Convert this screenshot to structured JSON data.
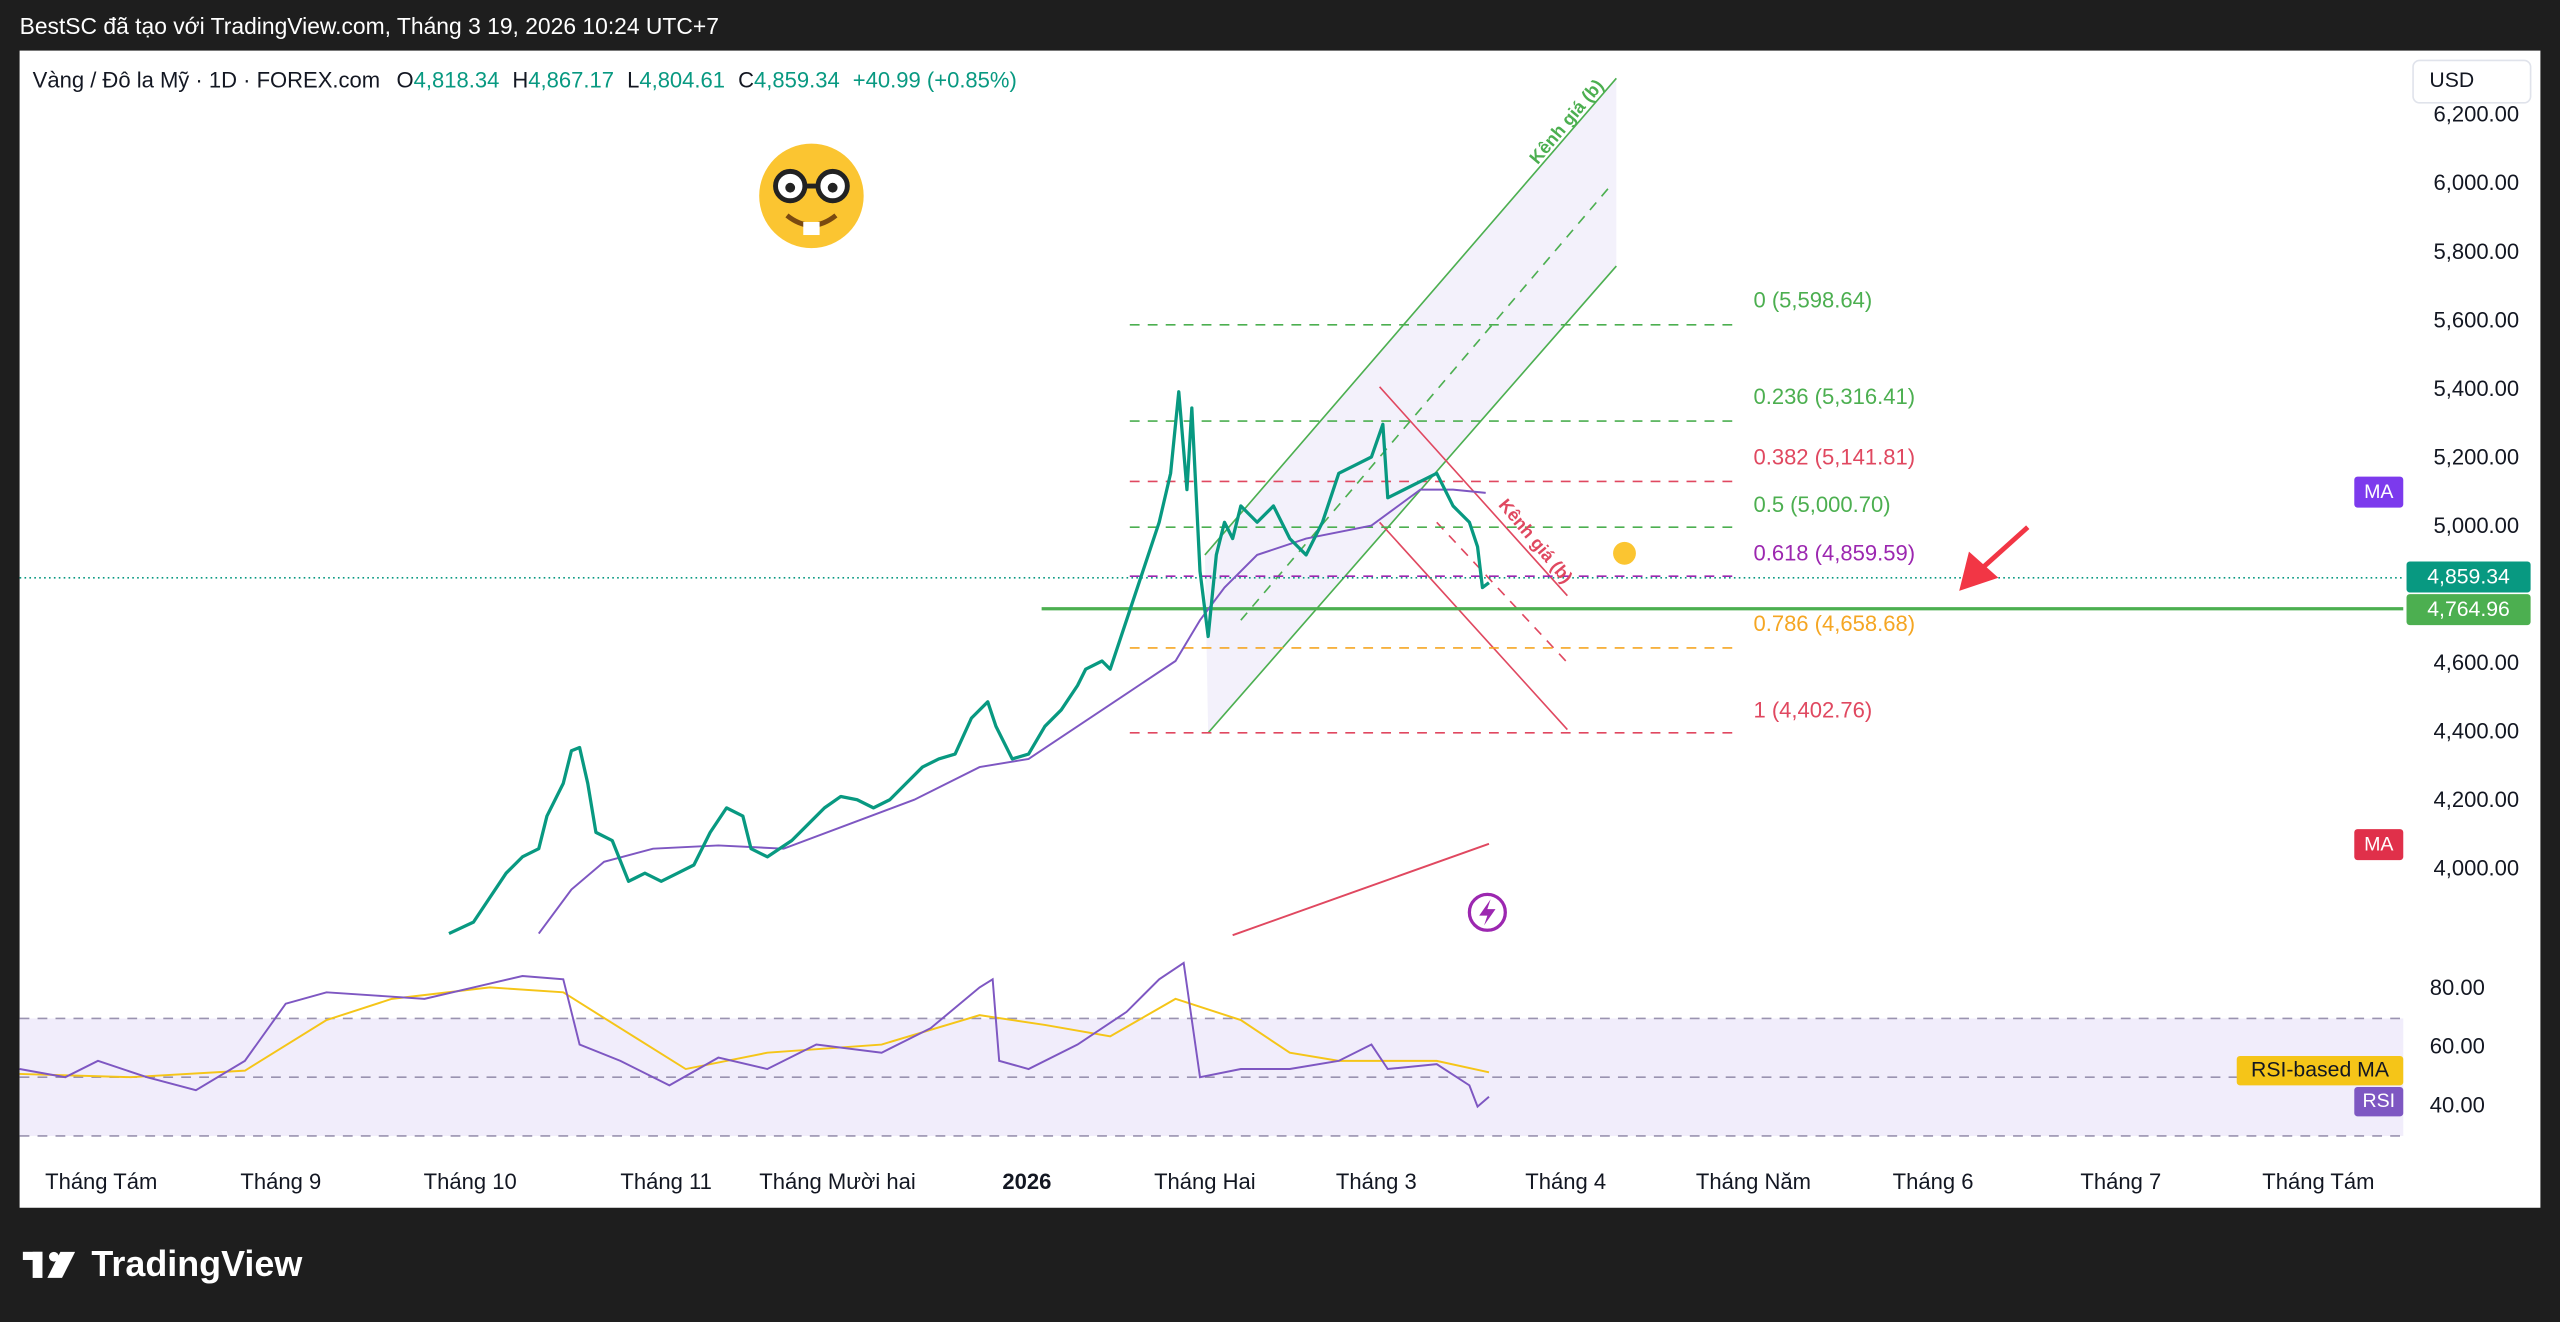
{
  "header": {
    "caption": "BestSC đã tạo với TradingView.com, Tháng 3 19, 2026 10:24 UTC+7"
  },
  "legend": {
    "symbol": "Vàng / Đô la Mỹ · 1D · FOREX.com",
    "ohlc": [
      {
        "label": "O",
        "value": "4,818.34"
      },
      {
        "label": "H",
        "value": "4,867.17"
      },
      {
        "label": "L",
        "value": "4,804.61"
      },
      {
        "label": "C",
        "value": "4,859.34"
      }
    ],
    "change": "+40.99 (+0.85%)"
  },
  "currency": "USD",
  "price_axis": [
    "6,200.00",
    "6,000.00",
    "5,800.00",
    "5,600.00",
    "5,400.00",
    "5,200.00",
    "5,000.00",
    "4,600.00",
    "4,400.00",
    "4,200.00",
    "4,000.00"
  ],
  "price_labels": {
    "last": "4,859.34",
    "line": "4,764.96"
  },
  "indicator_labels": {
    "ma_upper": "MA",
    "ma_lower": "MA",
    "rsi_ma": "RSI-based MA",
    "rsi": "RSI"
  },
  "rsi_axis": [
    "80.00",
    "60.00",
    "40.00"
  ],
  "fib_levels": [
    "0 (5,598.64)",
    "0.236 (5,316.41)",
    "0.382 (5,141.81)",
    "0.5 (5,000.70)",
    "0.618 (4,859.59)",
    "0.786 (4,658.68)",
    "1 (4,402.76)"
  ],
  "channels": {
    "up": "Kênh giá (b)",
    "down": "Kênh giá (b)"
  },
  "time_axis": [
    "Tháng Tám",
    "Tháng 9",
    "Tháng 10",
    "Tháng 11",
    "Tháng Mười hai",
    "2026",
    "Tháng Hai",
    "Tháng 3",
    "Tháng 4",
    "Tháng Năm",
    "Tháng 6",
    "Tháng 7",
    "Tháng Tám"
  ],
  "brand": "TradingView"
}
